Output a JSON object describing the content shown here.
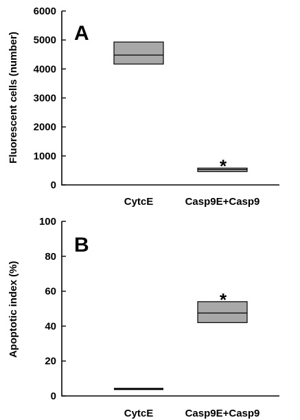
{
  "chart_data": [
    {
      "type": "box",
      "panel_label": "A",
      "ylabel": "Fluorescent cells (number)",
      "xlabel": "",
      "ylim": [
        0,
        6000
      ],
      "yticks": [
        0,
        1000,
        2000,
        3000,
        4000,
        5000,
        6000
      ],
      "categories": [
        "CytcE",
        "Casp9E+Casp9"
      ],
      "boxes": [
        {
          "category": "CytcE",
          "q1": 4170,
          "median": 4480,
          "q3": 4930
        },
        {
          "category": "Casp9E+Casp9",
          "q1": 460,
          "median": 530,
          "q3": 580
        }
      ],
      "annotations": [
        {
          "category": "Casp9E+Casp9",
          "text": "*"
        }
      ],
      "grid": false
    },
    {
      "type": "box",
      "panel_label": "B",
      "ylabel": "Apoptotic index (%)",
      "xlabel": "",
      "ylim": [
        0,
        100
      ],
      "yticks": [
        0,
        20,
        40,
        60,
        80,
        100
      ],
      "categories": [
        "CytcE",
        "Casp9E+Casp9"
      ],
      "boxes": [
        {
          "category": "CytcE",
          "q1": 4,
          "median": 4,
          "q3": 4
        },
        {
          "category": "Casp9E+Casp9",
          "q1": 42,
          "median": 47.5,
          "q3": 54
        }
      ],
      "annotations": [
        {
          "category": "Casp9E+Casp9",
          "text": "*"
        }
      ],
      "grid": false
    }
  ]
}
